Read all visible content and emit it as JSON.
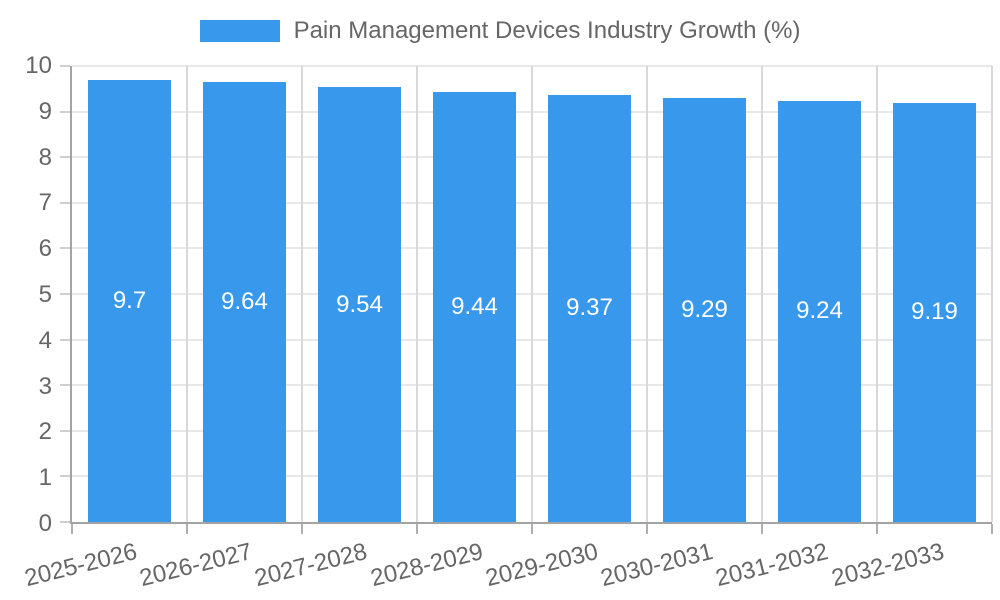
{
  "legend": {
    "label": "Pain Management Devices Industry Growth (%)",
    "swatch_color": "#3899ec"
  },
  "chart_data": {
    "type": "bar",
    "title": "Pain Management Devices Industry Growth (%)",
    "categories": [
      "2025-2026",
      "2026-2027",
      "2027-2028",
      "2028-2029",
      "2029-2030",
      "2030-2031",
      "2031-2032",
      "2032-2033"
    ],
    "values": [
      9.7,
      9.64,
      9.54,
      9.44,
      9.37,
      9.29,
      9.24,
      9.19
    ],
    "value_labels": [
      "9.7",
      "9.64",
      "9.54",
      "9.44",
      "9.37",
      "9.29",
      "9.24",
      "9.19"
    ],
    "xlabel": "",
    "ylabel": "",
    "ylim": [
      0,
      10
    ],
    "yticks": [
      0,
      1,
      2,
      3,
      4,
      5,
      6,
      7,
      8,
      9,
      10
    ],
    "grid": true,
    "legend_position": "top",
    "bar_color": "#3899ec",
    "value_label_color": "#ffffff",
    "tick_label_color": "#666666",
    "grid_color_horizontal": "#e8e8e8",
    "grid_color_vertical": "#d9d9d9",
    "axis_line_color": "#a3a3a3",
    "bar_width_fraction": 0.72,
    "x_label_rotation_deg": -14
  }
}
